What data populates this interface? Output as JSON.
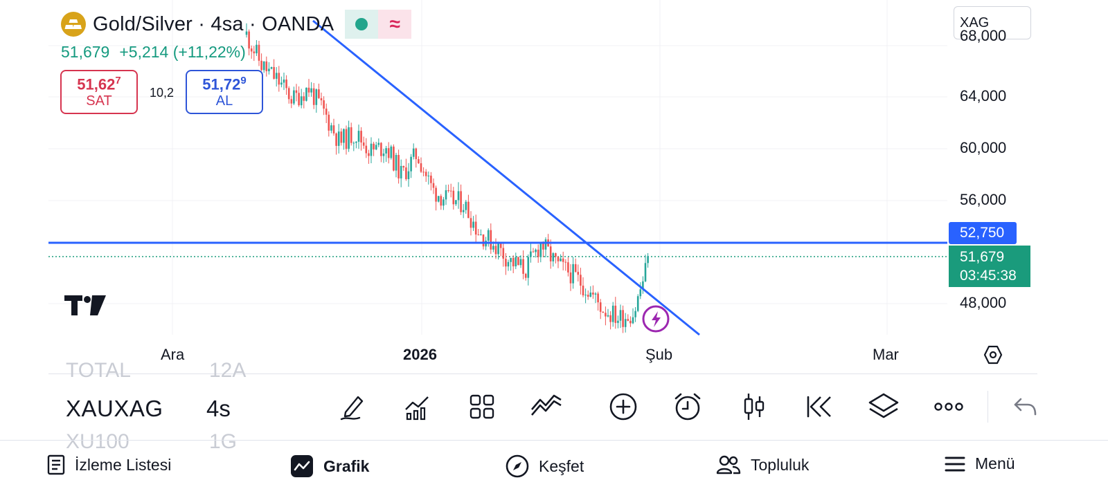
{
  "header": {
    "symbol_title": "Gold/Silver · 4sa · OANDA",
    "last_price": "51,679",
    "change": "+5,214 (+11,22%)",
    "pill_right_glyph": "≈"
  },
  "trade": {
    "sell_price": "51,627",
    "sell_label": "SAT",
    "spread": "10,2",
    "buy_price": "51,729",
    "buy_label": "AL"
  },
  "search": {
    "value": "XAG"
  },
  "price_axis": {
    "labels": [
      "64,000",
      "60,000",
      "56,000",
      "48,000"
    ],
    "partial_top": "68,000",
    "horizontal_line_price": "52,750",
    "current_price": "51,679",
    "countdown": "03:45:38"
  },
  "time_axis": [
    "Ara",
    "2026",
    "Şub",
    "Mar"
  ],
  "panel": {
    "ghost_top_symbol": "TOTAL",
    "ghost_top_interval": "12A",
    "symbol": "XAUXAG",
    "interval": "4s",
    "ghost_bottom_symbol": "XU100",
    "ghost_bottom_interval": "1G"
  },
  "toolbar": [
    "drawing-tool",
    "indicators",
    "layouts",
    "compare",
    "add",
    "alert",
    "chart-type",
    "replay",
    "layers",
    "more",
    "undo"
  ],
  "nav": {
    "watchlist": "İzleme Listesi",
    "chart": "Grafik",
    "explore": "Keşfet",
    "community": "Topluluk",
    "menu": "Menü"
  },
  "colors": {
    "up": "#26a69a",
    "down": "#ef5350",
    "trendline": "#2962ff",
    "accent_green": "#1a9b7c",
    "sell": "#d6344f",
    "buy": "#2e55d8",
    "alert_purple": "#9c27b0"
  },
  "chart_data": {
    "type": "candlestick",
    "interval": "4h",
    "y_axis_ticks": [
      68000,
      64000,
      60000,
      56000,
      48000
    ],
    "x_axis_ticks": [
      "Ara",
      "2026",
      "Şub",
      "Mar"
    ],
    "close_path": [
      68800,
      66400,
      65300,
      63800,
      64700,
      62800,
      60500,
      61200,
      59800,
      60200,
      57900,
      59600,
      56800,
      56000,
      55800,
      53500,
      52600,
      51300,
      50600,
      52700,
      51000,
      50300,
      49100,
      47600,
      46900,
      47300,
      51680
    ],
    "horizontal_line": 52750,
    "last_price": 51679,
    "trendline": "descending, from upper left through ~52,750 near late January"
  }
}
